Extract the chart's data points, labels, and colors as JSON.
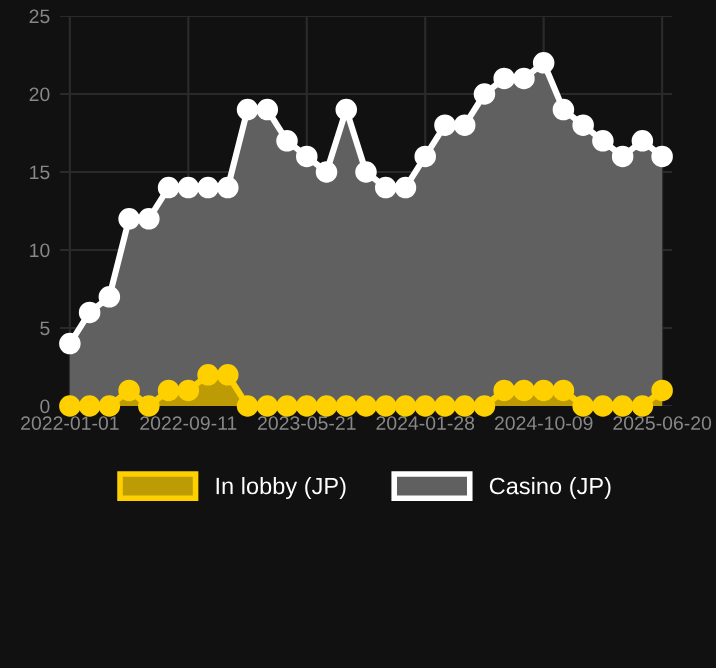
{
  "chart_data": {
    "type": "area",
    "categories": [
      "2022-01-01",
      null,
      null,
      null,
      null,
      null,
      "2022-09-11",
      null,
      null,
      null,
      null,
      null,
      "2023-05-21",
      null,
      null,
      null,
      null,
      null,
      "2024-01-28",
      null,
      null,
      null,
      null,
      null,
      "2024-10-09",
      null,
      null,
      null,
      null,
      null,
      "2025-06-20"
    ],
    "series": [
      {
        "name": "In lobby (JP)",
        "color": "#ffd000",
        "values": [
          0,
          0,
          0,
          1,
          0,
          1,
          1,
          2,
          2,
          0,
          0,
          0,
          0,
          0,
          0,
          0,
          0,
          0,
          0,
          0,
          0,
          0,
          1,
          1,
          1,
          1,
          0,
          0,
          0,
          0,
          1
        ]
      },
      {
        "name": "Casino (JP)",
        "color": "#ffffff",
        "values": [
          4,
          6,
          7,
          12,
          12,
          14,
          14,
          14,
          14,
          19,
          19,
          17,
          16,
          15,
          19,
          15,
          14,
          14,
          16,
          18,
          18,
          20,
          21,
          21,
          22,
          19,
          18,
          17,
          16,
          17,
          16
        ]
      }
    ],
    "ylim": [
      0,
      25
    ],
    "yticks": [
      0,
      5,
      10,
      15,
      20,
      25
    ],
    "grid": true,
    "legend": "bottom",
    "marker": "circle",
    "line_style": "solid"
  }
}
